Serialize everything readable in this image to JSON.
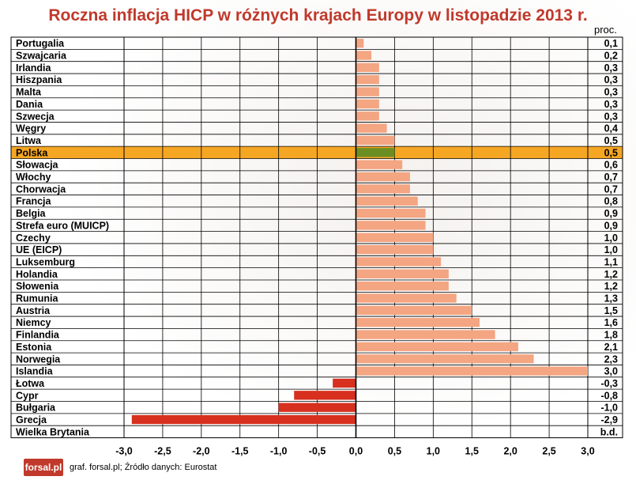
{
  "title": "Roczna inflacja HICP w różnych krajach Europy w listopadzie 2013 r.",
  "unit": "proc.",
  "source": "graf. forsal.pl; Źródło danych: Eurostat",
  "logo_text": "forsal.pl",
  "colors": {
    "positive": "#f4a582",
    "negative": "#d7301f",
    "highlight_row": "#f5a623",
    "highlight_bar": "#6b8e23"
  },
  "chart_data": {
    "type": "bar",
    "orientation": "horizontal",
    "xlim": [
      -3.0,
      3.0
    ],
    "x_ticks": [
      "-3,0",
      "-2,5",
      "-2,0",
      "-1,5",
      "-1,0",
      "-0,5",
      "0,0",
      "0,5",
      "1,0",
      "1,5",
      "2,0",
      "2,5",
      "3,0"
    ],
    "x_tick_values": [
      -3.0,
      -2.5,
      -2.0,
      -1.5,
      -1.0,
      -0.5,
      0.0,
      0.5,
      1.0,
      1.5,
      2.0,
      2.5,
      3.0
    ],
    "grid": true,
    "highlight": "Polska",
    "categories": [
      "Portugalia",
      "Szwajcaria",
      "Irlandia",
      "Hiszpania",
      "Malta",
      "Dania",
      "Szwecja",
      "Węgry",
      "Litwa",
      "Polska",
      "Słowacja",
      "Włochy",
      "Chorwacja",
      "Francja",
      "Belgia",
      "Strefa euro (MUICP)",
      "Czechy",
      "UE (EICP)",
      "Luksemburg",
      "Holandia",
      "Słowenia",
      "Rumunia",
      "Austria",
      "Niemcy",
      "Finlandia",
      "Estonia",
      "Norwegia",
      "Islandia",
      "Łotwa",
      "Cypr",
      "Bułgaria",
      "Grecja",
      "Wielka Brytania"
    ],
    "values": [
      0.1,
      0.2,
      0.3,
      0.3,
      0.3,
      0.3,
      0.3,
      0.4,
      0.5,
      0.5,
      0.6,
      0.7,
      0.7,
      0.8,
      0.9,
      0.9,
      1.0,
      1.0,
      1.1,
      1.2,
      1.2,
      1.3,
      1.5,
      1.6,
      1.8,
      2.1,
      2.3,
      3.0,
      -0.3,
      -0.8,
      -1.0,
      -2.9,
      null
    ],
    "value_labels": [
      "0,1",
      "0,2",
      "0,3",
      "0,3",
      "0,3",
      "0,3",
      "0,3",
      "0,4",
      "0,5",
      "0,5",
      "0,6",
      "0,7",
      "0,7",
      "0,8",
      "0,9",
      "0,9",
      "1,0",
      "1,0",
      "1,1",
      "1,2",
      "1,2",
      "1,3",
      "1,5",
      "1,6",
      "1,8",
      "2,1",
      "2,3",
      "3,0",
      "-0,3",
      "-0,8",
      "-1,0",
      "-2,9",
      "b.d."
    ]
  }
}
